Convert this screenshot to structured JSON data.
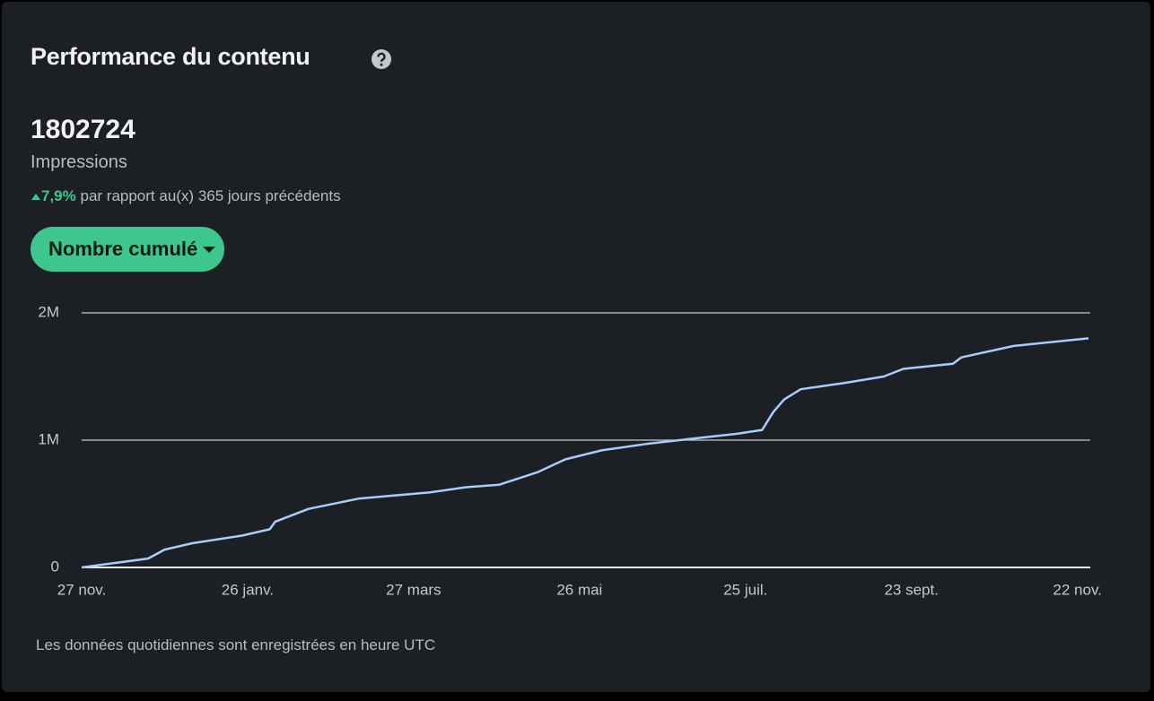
{
  "header": {
    "title": "Performance du contenu"
  },
  "metric": {
    "value": 1802724,
    "label": "Impressions",
    "change": "7,9%",
    "comparison": "par rapport au(x) 365 jours précédents"
  },
  "button": {
    "label": "Nombre cumulé"
  },
  "footnote": "Les données quotidiennes sont enregistrées en heure UTC",
  "chart_data": {
    "type": "line",
    "x": [
      0,
      24,
      30,
      40,
      58,
      68,
      70,
      82,
      100,
      126,
      139,
      151,
      165,
      175,
      188,
      204,
      224,
      237,
      246,
      250,
      254,
      260,
      276,
      290,
      297,
      315,
      318,
      337,
      364
    ],
    "series": [
      {
        "name": "Impressions",
        "color": "#a8cdfb",
        "values": [
          0,
          70000,
          140000,
          190000,
          250000,
          300000,
          360000,
          460000,
          540000,
          590000,
          630000,
          650000,
          750000,
          850000,
          920000,
          970000,
          1020000,
          1050000,
          1080000,
          1220000,
          1320000,
          1400000,
          1450000,
          1500000,
          1560000,
          1600000,
          1650000,
          1740000,
          1800000
        ]
      }
    ],
    "xlim": [
      0,
      364
    ],
    "xticks": [
      {
        "value": 0,
        "label": "27 nov."
      },
      {
        "value": 60,
        "label": "26 janv."
      },
      {
        "value": 120,
        "label": "27 mars"
      },
      {
        "value": 180,
        "label": "26 mai"
      },
      {
        "value": 240,
        "label": "25 juil."
      },
      {
        "value": 300,
        "label": "23 sept."
      },
      {
        "value": 360,
        "label": "22 nov."
      }
    ],
    "ylim": [
      0,
      2000000
    ],
    "yticks": [
      {
        "value": 0,
        "label": "0"
      },
      {
        "value": 1000000,
        "label": "1M"
      },
      {
        "value": 2000000,
        "label": "2M"
      }
    ],
    "grid": true
  }
}
